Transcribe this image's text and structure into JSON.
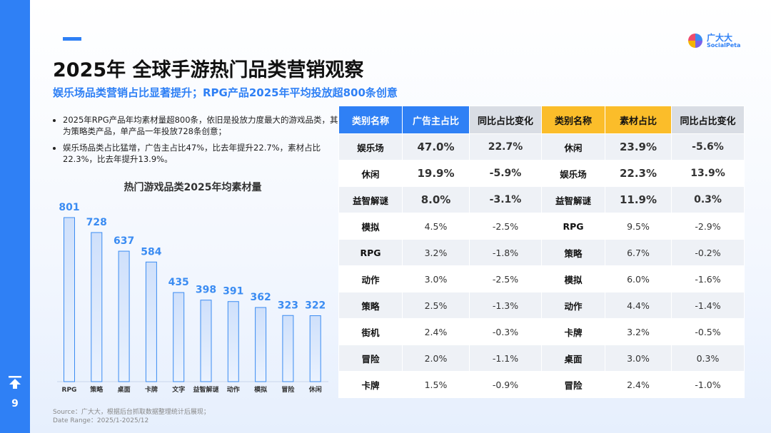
{
  "header": {
    "title": "2025年 全球手游热门品类营销观察",
    "subtitle": "娱乐场品类营销占比显著提升；RPG产品2025年平均投放超800条创意"
  },
  "logo": {
    "name": "广大大",
    "sub": "SocialPeta"
  },
  "bullets": [
    "2025年RPG产品年均素材量超800条，依旧是投放力度最大的游戏品类，其次为策略类产品，单产品一年投放728条创意；",
    "娱乐场品类占比猛增，广告主占比47%，比去年提升22.7%，素材占比22.3%，比去年提升13.9%。"
  ],
  "chart_data": {
    "type": "bar",
    "title": "热门游戏品类2025年均素材量",
    "categories": [
      "RPG",
      "策略",
      "桌面",
      "卡牌",
      "文字",
      "益智解谜",
      "动作",
      "模拟",
      "冒险",
      "休闲"
    ],
    "values": [
      801,
      728,
      637,
      584,
      435,
      398,
      391,
      362,
      323,
      322
    ],
    "color": "#3b8cf2"
  },
  "table": {
    "headers": [
      "类别名称",
      "广告主占比",
      "同比占比变化",
      "类别名称",
      "素材占比",
      "同比占比变化"
    ],
    "rows": [
      [
        "娱乐场",
        "47.0%",
        "22.7%",
        "休闲",
        "23.9%",
        "-5.6%"
      ],
      [
        "休闲",
        "19.9%",
        "-5.9%",
        "娱乐场",
        "22.3%",
        "13.9%"
      ],
      [
        "益智解谜",
        "8.0%",
        "-3.1%",
        "益智解谜",
        "11.9%",
        "0.3%"
      ],
      [
        "模拟",
        "4.5%",
        "-2.5%",
        "RPG",
        "9.5%",
        "-2.9%"
      ],
      [
        "RPG",
        "3.2%",
        "-1.8%",
        "策略",
        "6.7%",
        "-0.2%"
      ],
      [
        "动作",
        "3.0%",
        "-2.5%",
        "模拟",
        "6.0%",
        "-1.6%"
      ],
      [
        "策略",
        "2.5%",
        "-1.3%",
        "动作",
        "4.4%",
        "-1.4%"
      ],
      [
        "街机",
        "2.4%",
        "-0.3%",
        "卡牌",
        "3.2%",
        "-0.5%"
      ],
      [
        "冒险",
        "2.0%",
        "-1.1%",
        "桌面",
        "3.0%",
        "0.3%"
      ],
      [
        "卡牌",
        "1.5%",
        "-0.9%",
        "冒险",
        "2.4%",
        "-1.0%"
      ]
    ]
  },
  "footer": {
    "source": "Source：广大大，根据后台抓取数据整理统计后展现；",
    "range": "Date Range：2025/1-2025/12"
  },
  "page_number": "9"
}
